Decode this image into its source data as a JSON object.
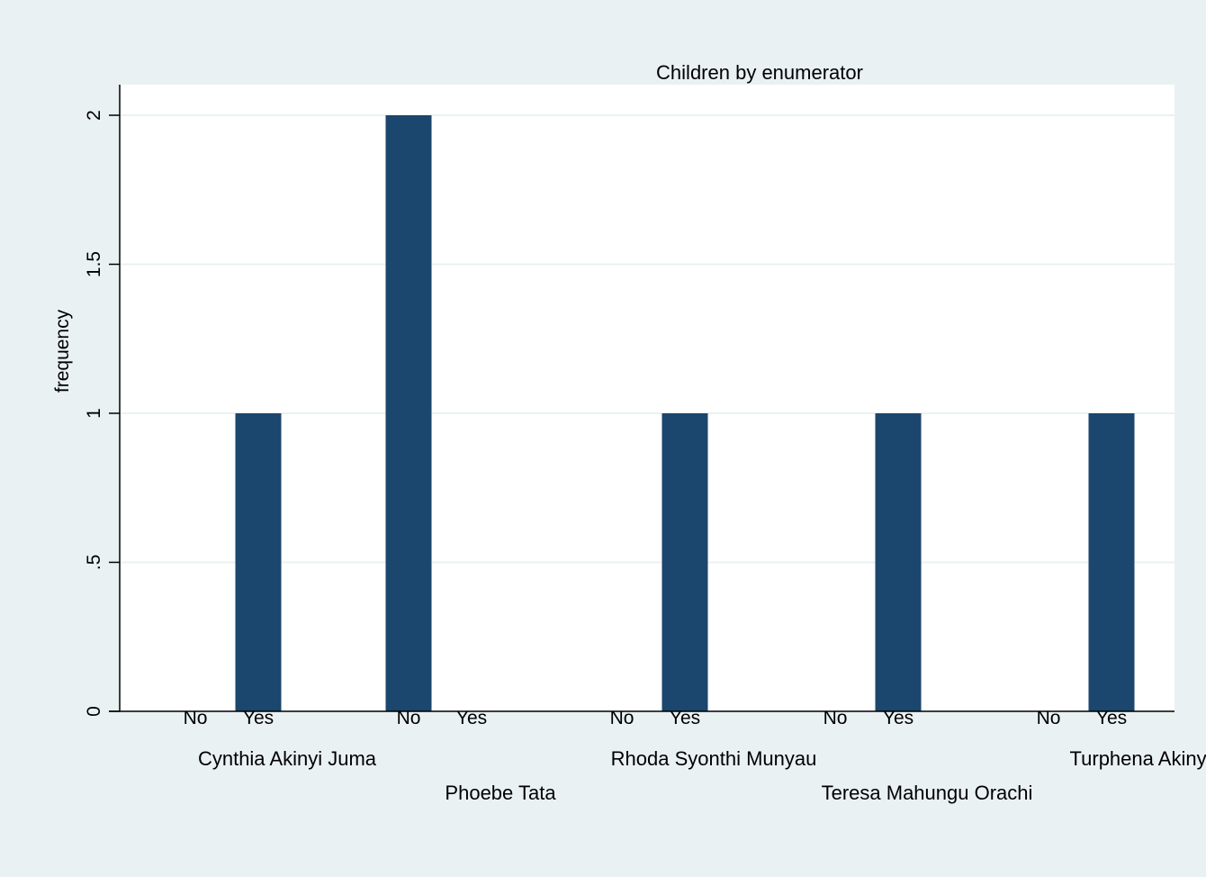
{
  "chart_data": {
    "type": "bar",
    "title": "Children by enumerator",
    "ylabel": "frequency",
    "xlabel": "",
    "ylim": [
      0,
      2.1
    ],
    "yticks": [
      {
        "value": 0,
        "label": "0"
      },
      {
        "value": 0.5,
        "label": ".5"
      },
      {
        "value": 1,
        "label": "1"
      },
      {
        "value": 1.5,
        "label": "1.5"
      },
      {
        "value": 2,
        "label": "2"
      }
    ],
    "grid": true,
    "groups": [
      {
        "name": "Cynthia Akinyi Juma",
        "categories": [
          "No",
          "Yes"
        ],
        "values": [
          0,
          1
        ]
      },
      {
        "name": "Phoebe Tata",
        "categories": [
          "No",
          "Yes"
        ],
        "values": [
          2,
          0
        ]
      },
      {
        "name": "Rhoda Syonthi Munyau",
        "categories": [
          "No",
          "Yes"
        ],
        "values": [
          0,
          1
        ]
      },
      {
        "name": "Teresa Mahungu Orachi",
        "categories": [
          "No",
          "Yes"
        ],
        "values": [
          0,
          1
        ]
      },
      {
        "name": "Turphena Akinyi",
        "categories": [
          "No",
          "Yes"
        ],
        "values": [
          0,
          1
        ]
      }
    ],
    "colors": {
      "bar": "#1b466d",
      "plot_background": "#ffffff",
      "page_background": "#eaf1f3",
      "grid": "#eaf1f3",
      "axis": "#000000"
    }
  }
}
